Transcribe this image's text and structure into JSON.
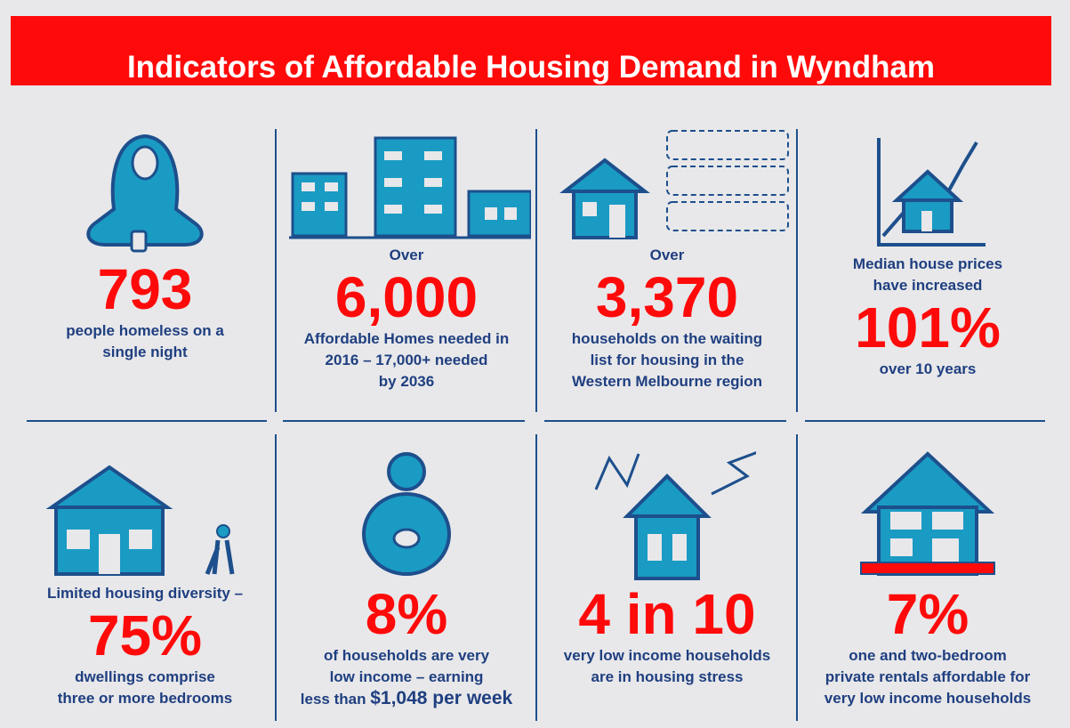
{
  "header": {
    "title": "Indicators of Affordable Housing Demand in Wyndham"
  },
  "panels": [
    {
      "figure": "793",
      "below": [
        "people homeless on a",
        "single night"
      ]
    },
    {
      "above": [
        "Over"
      ],
      "figure": "6,000",
      "below": [
        "Affordable Homes needed  in",
        "2016 – 17,000+ needed",
        "by 2036"
      ]
    },
    {
      "above": [
        "Over"
      ],
      "figure": "3,370",
      "below": [
        "households on the waiting",
        "list for housing in the",
        "Western Melbourne region"
      ]
    },
    {
      "above": [
        "Median house prices",
        "have increased"
      ],
      "figure": "101%",
      "below": [
        "over 10 years"
      ]
    },
    {
      "above": [
        "Limited housing diversity –"
      ],
      "figure": "75%",
      "below": [
        "dwellings comprise",
        "three or more bedrooms"
      ]
    },
    {
      "figure": "8%",
      "below": [
        "of households are very",
        "low income – earning",
        "less than"
      ],
      "highlight": "$1,048 per week"
    },
    {
      "figure": "4 in 10",
      "below": [
        "very low income households",
        "are in housing stress"
      ]
    },
    {
      "figure": "7%",
      "below": [
        "one and two-bedroom",
        "private rentals affordable for",
        "very low income households"
      ]
    }
  ]
}
